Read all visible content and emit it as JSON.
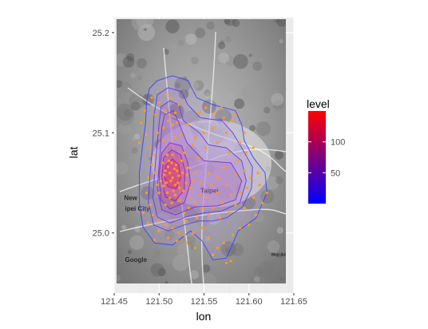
{
  "chart_data": {
    "type": "density-map",
    "xlabel": "lon",
    "ylabel": "lat",
    "xlim": [
      121.45,
      121.65
    ],
    "ylim": [
      24.94,
      25.215
    ],
    "xticks": [
      "121.45",
      "121.50",
      "121.55",
      "121.60",
      "121.65"
    ],
    "xtick_values": [
      121.45,
      121.5,
      121.55,
      121.6,
      121.65
    ],
    "yticks": [
      "25.0",
      "25.1",
      "25.2"
    ],
    "ytick_values": [
      25.0,
      25.1,
      25.2
    ],
    "legend": {
      "title": "level",
      "labels": [
        "100",
        "50"
      ],
      "values": [
        100,
        50
      ],
      "range": [
        0,
        150
      ],
      "color_low": "#0000ff",
      "color_high": "#ff0000"
    },
    "map_labels": [
      {
        "text": "Taipei",
        "lon": 121.546,
        "lat": 25.04
      },
      {
        "text": "New",
        "lon": 121.461,
        "lat": 25.033
      },
      {
        "text": "ipei City",
        "lon": 121.462,
        "lat": 25.022
      },
      {
        "text": "Google",
        "lon": 121.462,
        "lat": 24.971
      },
      {
        "text": "Map data ©2016 Google",
        "lon": 121.625,
        "lat": 24.977
      }
    ],
    "contours": [
      {
        "level": 10,
        "color": "#4040ff",
        "points": [
          [
            121.489,
            25.144
          ],
          [
            121.498,
            25.152
          ],
          [
            121.515,
            25.157
          ],
          [
            121.532,
            25.152
          ],
          [
            121.542,
            25.135
          ],
          [
            121.56,
            25.128
          ],
          [
            121.585,
            25.122
          ],
          [
            121.592,
            25.108
          ],
          [
            121.595,
            25.092
          ],
          [
            121.605,
            25.075
          ],
          [
            121.618,
            25.06
          ],
          [
            121.62,
            25.04
          ],
          [
            121.608,
            25.015
          ],
          [
            121.588,
            25.002
          ],
          [
            121.575,
            24.975
          ],
          [
            121.56,
            24.973
          ],
          [
            121.548,
            24.992
          ],
          [
            121.535,
            25.002
          ],
          [
            121.515,
            24.988
          ],
          [
            121.495,
            24.99
          ],
          [
            121.482,
            25.006
          ],
          [
            121.478,
            25.03
          ],
          [
            121.478,
            25.06
          ],
          [
            121.482,
            25.09
          ],
          [
            121.485,
            25.11
          ],
          [
            121.486,
            25.13
          ]
        ]
      },
      {
        "level": 20,
        "color": "#5a3ee8",
        "points": [
          [
            121.498,
            25.138
          ],
          [
            121.51,
            25.145
          ],
          [
            121.525,
            25.141
          ],
          [
            121.532,
            25.128
          ],
          [
            121.546,
            25.115
          ],
          [
            121.57,
            25.112
          ],
          [
            121.582,
            25.1
          ],
          [
            121.592,
            25.085
          ],
          [
            121.604,
            25.066
          ],
          [
            121.603,
            25.045
          ],
          [
            121.593,
            25.026
          ],
          [
            121.575,
            25.015
          ],
          [
            121.56,
            25.012
          ],
          [
            121.545,
            25.012
          ],
          [
            121.528,
            25.008
          ],
          [
            121.51,
            25.002
          ],
          [
            121.494,
            25.008
          ],
          [
            121.488,
            25.03
          ],
          [
            121.49,
            25.06
          ],
          [
            121.493,
            25.09
          ],
          [
            121.494,
            25.115
          ]
        ]
      },
      {
        "level": 30,
        "color": "#6a38d8",
        "points": [
          [
            121.502,
            25.126
          ],
          [
            121.512,
            25.132
          ],
          [
            121.522,
            25.128
          ],
          [
            121.527,
            25.112
          ],
          [
            121.545,
            25.1
          ],
          [
            121.555,
            25.088
          ],
          [
            121.575,
            25.085
          ],
          [
            121.592,
            25.072
          ],
          [
            121.597,
            25.052
          ],
          [
            121.59,
            25.03
          ],
          [
            121.57,
            25.022
          ],
          [
            121.55,
            25.02
          ],
          [
            121.53,
            25.016
          ],
          [
            121.512,
            25.01
          ],
          [
            121.498,
            25.016
          ],
          [
            121.493,
            25.035
          ],
          [
            121.496,
            25.07
          ],
          [
            121.499,
            25.1
          ]
        ]
      },
      {
        "level": 40,
        "color": "#7a33c8",
        "points": [
          [
            121.506,
            25.118
          ],
          [
            121.516,
            25.122
          ],
          [
            121.522,
            25.11
          ],
          [
            121.531,
            25.09
          ],
          [
            121.55,
            25.072
          ],
          [
            121.58,
            25.07
          ],
          [
            121.592,
            25.052
          ],
          [
            121.585,
            25.033
          ],
          [
            121.565,
            25.027
          ],
          [
            121.54,
            25.026
          ],
          [
            121.518,
            25.018
          ],
          [
            121.503,
            25.023
          ],
          [
            121.498,
            25.045
          ],
          [
            121.501,
            25.08
          ],
          [
            121.503,
            25.105
          ]
        ]
      },
      {
        "level": 60,
        "color": "#8a2eb8",
        "points": [
          [
            121.503,
            25.08
          ],
          [
            121.512,
            25.09
          ],
          [
            121.525,
            25.087
          ],
          [
            121.532,
            25.07
          ],
          [
            121.535,
            25.05
          ],
          [
            121.528,
            25.03
          ],
          [
            121.512,
            25.024
          ],
          [
            121.502,
            25.033
          ],
          [
            121.5,
            25.058
          ]
        ]
      },
      {
        "level": 80,
        "color": "#9b29a6",
        "points": [
          [
            121.505,
            25.075
          ],
          [
            121.514,
            25.083
          ],
          [
            121.524,
            25.078
          ],
          [
            121.529,
            25.062
          ],
          [
            121.528,
            25.043
          ],
          [
            121.518,
            25.032
          ],
          [
            121.507,
            25.036
          ],
          [
            121.503,
            25.055
          ]
        ]
      },
      {
        "level": 120,
        "color": "#b51f8c",
        "points": [
          [
            121.507,
            25.067
          ],
          [
            121.515,
            25.074
          ],
          [
            121.522,
            25.068
          ],
          [
            121.524,
            25.055
          ],
          [
            121.519,
            25.044
          ],
          [
            121.51,
            25.046
          ],
          [
            121.506,
            25.056
          ]
        ]
      }
    ],
    "points": [
      [
        121.512,
        25.06
      ],
      [
        121.515,
        25.055
      ],
      [
        121.508,
        25.05
      ],
      [
        121.518,
        25.048
      ],
      [
        121.52,
        25.062
      ],
      [
        121.51,
        25.066
      ],
      [
        121.506,
        25.058
      ],
      [
        121.514,
        25.07
      ],
      [
        121.522,
        25.057
      ],
      [
        121.516,
        25.042
      ],
      [
        121.509,
        25.04
      ],
      [
        121.513,
        25.052
      ],
      [
        121.517,
        25.064
      ],
      [
        121.505,
        25.047
      ],
      [
        121.521,
        25.05
      ],
      [
        121.511,
        25.072
      ],
      [
        121.519,
        25.068
      ],
      [
        121.507,
        25.062
      ],
      [
        121.523,
        25.045
      ],
      [
        121.512,
        25.035
      ],
      [
        121.515,
        25.078
      ],
      [
        121.502,
        25.052
      ],
      [
        121.526,
        25.06
      ],
      [
        121.518,
        25.038
      ],
      [
        121.53,
        25.05
      ],
      [
        121.509,
        25.078
      ],
      [
        121.527,
        25.042
      ],
      [
        121.5,
        25.04
      ],
      [
        121.514,
        25.03
      ],
      [
        121.522,
        25.032
      ],
      [
        121.504,
        25.07
      ],
      [
        121.496,
        25.06
      ],
      [
        121.531,
        25.058
      ],
      [
        121.498,
        25.048
      ],
      [
        121.525,
        25.072
      ],
      [
        121.507,
        25.028
      ],
      [
        121.535,
        25.045
      ],
      [
        121.54,
        25.03
      ],
      [
        121.545,
        25.038
      ],
      [
        121.533,
        25.025
      ],
      [
        121.548,
        25.025
      ],
      [
        121.538,
        25.052
      ],
      [
        121.553,
        25.035
      ],
      [
        121.56,
        25.025
      ],
      [
        121.565,
        25.04
      ],
      [
        121.57,
        25.03
      ],
      [
        121.575,
        25.048
      ],
      [
        121.58,
        25.038
      ],
      [
        121.585,
        25.028
      ],
      [
        121.59,
        25.04
      ],
      [
        121.598,
        25.045
      ],
      [
        121.605,
        25.035
      ],
      [
        121.595,
        25.025
      ],
      [
        121.578,
        25.02
      ],
      [
        121.568,
        25.015
      ],
      [
        121.555,
        25.018
      ],
      [
        121.542,
        25.015
      ],
      [
        121.53,
        25.012
      ],
      [
        121.506,
        25.122
      ],
      [
        121.512,
        25.118
      ],
      [
        121.518,
        25.12
      ],
      [
        121.51,
        25.112
      ],
      [
        121.515,
        25.108
      ],
      [
        121.505,
        25.105
      ],
      [
        121.52,
        25.11
      ],
      [
        121.522,
        25.128
      ],
      [
        121.5,
        25.13
      ],
      [
        121.513,
        25.135
      ],
      [
        121.508,
        25.138
      ],
      [
        121.496,
        25.118
      ],
      [
        121.525,
        25.098
      ],
      [
        121.518,
        25.095
      ],
      [
        121.505,
        25.092
      ],
      [
        121.498,
        25.1
      ],
      [
        121.484,
        25.122
      ],
      [
        121.486,
        25.098
      ],
      [
        121.49,
        25.085
      ],
      [
        121.495,
        25.078
      ],
      [
        121.492,
        25.068
      ],
      [
        121.488,
        25.055
      ],
      [
        121.486,
        25.04
      ],
      [
        121.49,
        25.028
      ],
      [
        121.493,
        25.018
      ],
      [
        121.5,
        25.012
      ],
      [
        121.508,
        25.008
      ],
      [
        121.515,
        25.005
      ],
      [
        121.522,
        25.0
      ],
      [
        121.528,
        24.998
      ],
      [
        121.52,
        24.992
      ],
      [
        121.51,
        24.995
      ],
      [
        121.5,
        25.002
      ],
      [
        121.495,
        24.993
      ],
      [
        121.488,
        25.01
      ],
      [
        121.482,
        25.02
      ],
      [
        121.545,
        25.12
      ],
      [
        121.552,
        25.125
      ],
      [
        121.562,
        25.12
      ],
      [
        121.572,
        25.115
      ],
      [
        121.58,
        25.112
      ],
      [
        121.585,
        25.118
      ],
      [
        121.575,
        25.1
      ],
      [
        121.56,
        25.105
      ],
      [
        121.55,
        25.1
      ],
      [
        121.54,
        25.095
      ],
      [
        121.565,
        25.09
      ],
      [
        121.578,
        25.08
      ],
      [
        121.588,
        25.072
      ],
      [
        121.595,
        25.062
      ],
      [
        121.602,
        25.055
      ],
      [
        121.61,
        25.06
      ],
      [
        121.612,
        25.048
      ],
      [
        121.615,
        25.03
      ],
      [
        121.608,
        25.018
      ],
      [
        121.6,
        25.008
      ],
      [
        121.59,
        25.005
      ],
      [
        121.582,
        24.998
      ],
      [
        121.572,
        24.99
      ],
      [
        121.565,
        24.985
      ],
      [
        121.56,
        24.978
      ],
      [
        121.555,
        24.995
      ],
      [
        121.548,
        25.005
      ],
      [
        121.538,
        25.0
      ],
      [
        121.53,
        24.99
      ],
      [
        121.54,
        24.985
      ],
      [
        121.532,
        25.065
      ],
      [
        121.543,
        25.075
      ],
      [
        121.552,
        25.085
      ],
      [
        121.54,
        25.06
      ],
      [
        121.556,
        25.06
      ],
      [
        121.565,
        25.055
      ],
      [
        121.572,
        25.065
      ],
      [
        121.585,
        25.058
      ],
      [
        121.558,
        25.048
      ],
      [
        121.546,
        25.05
      ],
      [
        121.532,
        25.108
      ],
      [
        121.537,
        25.088
      ],
      [
        121.528,
        25.08
      ],
      [
        121.59,
        25.09
      ],
      [
        121.597,
        25.08
      ],
      [
        121.62,
        25.04
      ],
      [
        121.58,
        24.972
      ],
      [
        121.575,
        24.97
      ],
      [
        121.492,
        25.135
      ],
      [
        121.48,
        25.11
      ],
      [
        121.478,
        25.09
      ],
      [
        121.605,
        25.085
      ],
      [
        121.569,
        25.125
      ],
      [
        121.595,
        25.1
      ],
      [
        121.535,
        25.035
      ],
      [
        121.528,
        25.02
      ]
    ]
  }
}
